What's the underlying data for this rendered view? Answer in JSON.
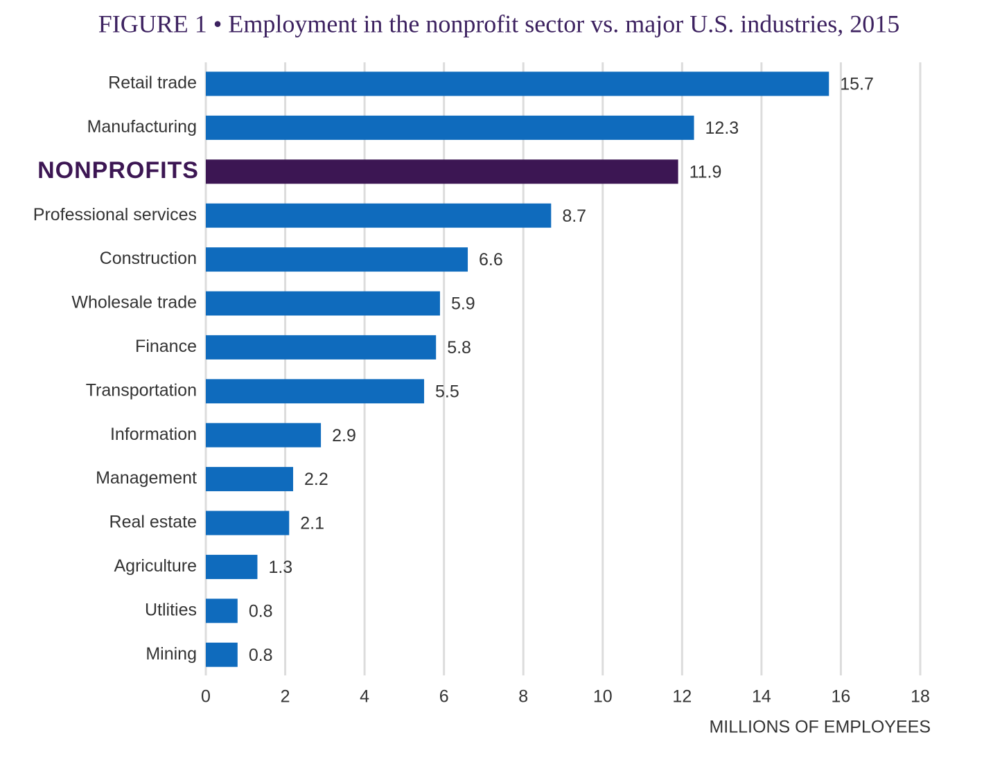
{
  "chart_data": {
    "type": "barh",
    "title": "FIGURE 1 • Employment in the nonprofit sector vs. major U.S. industries, 2015",
    "x_label": "MILLIONS OF EMPLOYEES",
    "categories": [
      "Retail trade",
      "Manufacturing",
      "NONPROFITS",
      "Professional services",
      "Construction",
      "Wholesale trade",
      "Finance",
      "Transportation",
      "Information",
      "Management",
      "Real estate",
      "Agriculture",
      "Utlities",
      "Mining"
    ],
    "values": [
      15.7,
      12.3,
      11.9,
      8.7,
      6.6,
      5.9,
      5.8,
      5.5,
      2.9,
      2.2,
      2.1,
      1.3,
      0.8,
      0.8
    ],
    "colors": [
      "#0f6bbd",
      "#0f6bbd",
      "#3c1653",
      "#0f6bbd",
      "#0f6bbd",
      "#0f6bbd",
      "#0f6bbd",
      "#0f6bbd",
      "#0f6bbd",
      "#0f6bbd",
      "#0f6bbd",
      "#0f6bbd",
      "#0f6bbd",
      "#0f6bbd"
    ],
    "xlim": [
      0,
      18
    ],
    "xticks": [
      0,
      2,
      4,
      6,
      8,
      10,
      12,
      14,
      16,
      18
    ],
    "grid": true
  }
}
